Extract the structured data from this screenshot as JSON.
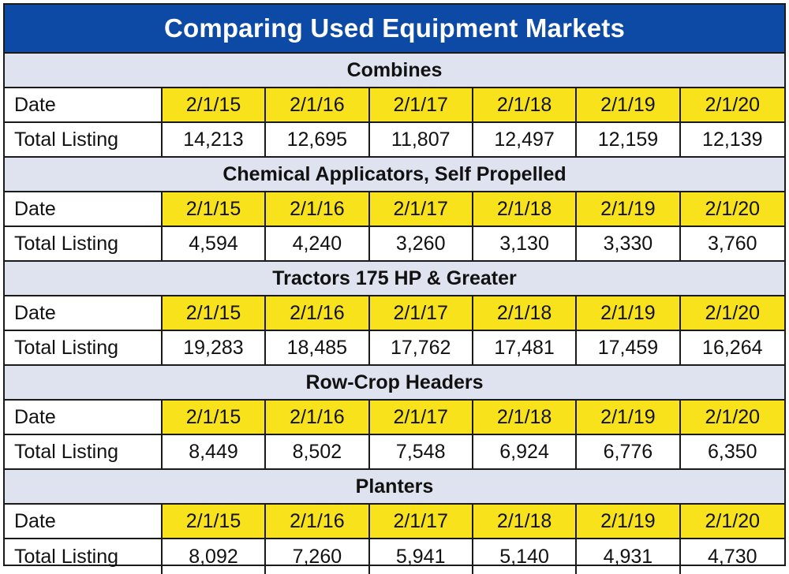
{
  "title": "Comparing Used Equipment Markets",
  "colors": {
    "title_bg": "#0c4aa6",
    "section_bg": "#dfe3f0",
    "date_bg": "#f7e21b"
  },
  "sections": [
    {
      "header": "Combines",
      "date_label": "Date",
      "dates": [
        "2/1/15",
        "2/1/16",
        "2/1/17",
        "2/1/18",
        "2/1/19",
        "2/1/20"
      ],
      "listing_label": "Total Listing",
      "listings": [
        "14,213",
        "12,695",
        "11,807",
        "12,497",
        "12,159",
        "12,139"
      ]
    },
    {
      "header": "Chemical Applicators, Self Propelled",
      "date_label": "Date",
      "dates": [
        "2/1/15",
        "2/1/16",
        "2/1/17",
        "2/1/18",
        "2/1/19",
        "2/1/20"
      ],
      "listing_label": "Total Listing",
      "listings": [
        "4,594",
        "4,240",
        "3,260",
        "3,130",
        "3,330",
        "3,760"
      ]
    },
    {
      "header": "Tractors 175 HP & Greater",
      "date_label": "Date",
      "dates": [
        "2/1/15",
        "2/1/16",
        "2/1/17",
        "2/1/18",
        "2/1/19",
        "2/1/20"
      ],
      "listing_label": "Total Listing",
      "listings": [
        "19,283",
        "18,485",
        "17,762",
        "17,481",
        "17,459",
        "16,264"
      ]
    },
    {
      "header": "Row-Crop Headers",
      "date_label": "Date",
      "dates": [
        "2/1/15",
        "2/1/16",
        "2/1/17",
        "2/1/18",
        "2/1/19",
        "2/1/20"
      ],
      "listing_label": "Total Listing",
      "listings": [
        "8,449",
        "8,502",
        "7,548",
        "6,924",
        "6,776",
        "6,350"
      ]
    },
    {
      "header": "Planters",
      "date_label": "Date",
      "dates": [
        "2/1/15",
        "2/1/16",
        "2/1/17",
        "2/1/18",
        "2/1/19",
        "2/1/20"
      ],
      "listing_label": "Total Listing",
      "listings": [
        "8,092",
        "7,260",
        "5,941",
        "5,140",
        "4,931",
        "4,730"
      ]
    }
  ]
}
